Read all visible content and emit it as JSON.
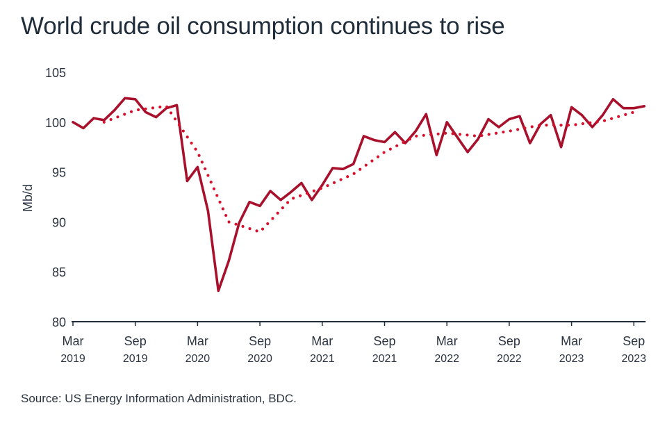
{
  "title": "World crude oil consumption continues to rise",
  "source": "Source: US Energy Information Administration, BDC.",
  "colors": {
    "line": "#a8102c",
    "dotted": "#d9102c",
    "axis": "#1f2d3a",
    "text": "#2b3440"
  },
  "chart_data": {
    "type": "line",
    "title": "World crude oil consumption continues to rise",
    "xlabel": "",
    "ylabel": "Mb/d",
    "ylim": [
      80,
      105
    ],
    "yticks": [
      80,
      85,
      90,
      95,
      100,
      105
    ],
    "xlim": [
      "2019-03",
      "2023-10"
    ],
    "grid": false,
    "xtick_labels": [
      {
        "x": "2019-03",
        "month": "Mar",
        "year": "2019"
      },
      {
        "x": "2019-09",
        "month": "Sep",
        "year": "2019"
      },
      {
        "x": "2020-03",
        "month": "Mar",
        "year": "2020"
      },
      {
        "x": "2020-09",
        "month": "Sep",
        "year": "2020"
      },
      {
        "x": "2021-03",
        "month": "Mar",
        "year": "2021"
      },
      {
        "x": "2021-09",
        "month": "Sep",
        "year": "2021"
      },
      {
        "x": "2022-03",
        "month": "Mar",
        "year": "2022"
      },
      {
        "x": "2022-09",
        "month": "Sep",
        "year": "2022"
      },
      {
        "x": "2023-03",
        "month": "Mar",
        "year": "2023"
      },
      {
        "x": "2023-09",
        "month": "Sep",
        "year": "2023"
      }
    ],
    "series": [
      {
        "style": "solid",
        "x": [
          "2019-03",
          "2019-04",
          "2019-05",
          "2019-06",
          "2019-07",
          "2019-08",
          "2019-09",
          "2019-10",
          "2019-11",
          "2019-12",
          "2020-01",
          "2020-02",
          "2020-03",
          "2020-04",
          "2020-05",
          "2020-06",
          "2020-07",
          "2020-08",
          "2020-09",
          "2020-10",
          "2020-11",
          "2020-12",
          "2021-01",
          "2021-02",
          "2021-03",
          "2021-04",
          "2021-05",
          "2021-06",
          "2021-07",
          "2021-08",
          "2021-09",
          "2021-10",
          "2021-11",
          "2021-12",
          "2022-01",
          "2022-02",
          "2022-03",
          "2022-04",
          "2022-05",
          "2022-06",
          "2022-07",
          "2022-08",
          "2022-09",
          "2022-10",
          "2022-11",
          "2022-12",
          "2023-01",
          "2023-02",
          "2023-03",
          "2023-04",
          "2023-05",
          "2023-06",
          "2023-07",
          "2023-08",
          "2023-09",
          "2023-10"
        ],
        "values": [
          100.0,
          99.4,
          100.4,
          100.2,
          101.2,
          102.4,
          102.3,
          101.0,
          100.5,
          101.4,
          101.7,
          94.1,
          95.5,
          91.1,
          83.1,
          86.1,
          89.9,
          92.0,
          91.6,
          93.1,
          92.2,
          93.0,
          93.9,
          92.2,
          93.7,
          95.4,
          95.3,
          95.8,
          98.6,
          98.2,
          98.0,
          99.0,
          97.9,
          99.1,
          100.8,
          96.7,
          100.0,
          98.5,
          97.0,
          98.3,
          100.3,
          99.5,
          100.3,
          100.6,
          97.9,
          99.8,
          100.7,
          97.5,
          101.5,
          100.7,
          99.5,
          100.7,
          102.3,
          101.4,
          101.4,
          101.6
        ]
      },
      {
        "style": "dotted",
        "x": [
          "2019-06",
          "2019-09",
          "2019-12",
          "2020-03",
          "2020-06",
          "2020-09",
          "2020-12",
          "2021-03",
          "2021-06",
          "2021-09",
          "2021-12",
          "2022-03",
          "2022-06",
          "2022-09",
          "2022-12",
          "2023-03",
          "2023-06",
          "2023-09"
        ],
        "values": [
          100.0,
          101.2,
          101.6,
          97.0,
          90.0,
          89.0,
          92.3,
          93.4,
          94.8,
          97.0,
          98.6,
          98.9,
          98.6,
          99.1,
          99.7,
          99.7,
          100.1,
          101.0
        ]
      }
    ]
  }
}
